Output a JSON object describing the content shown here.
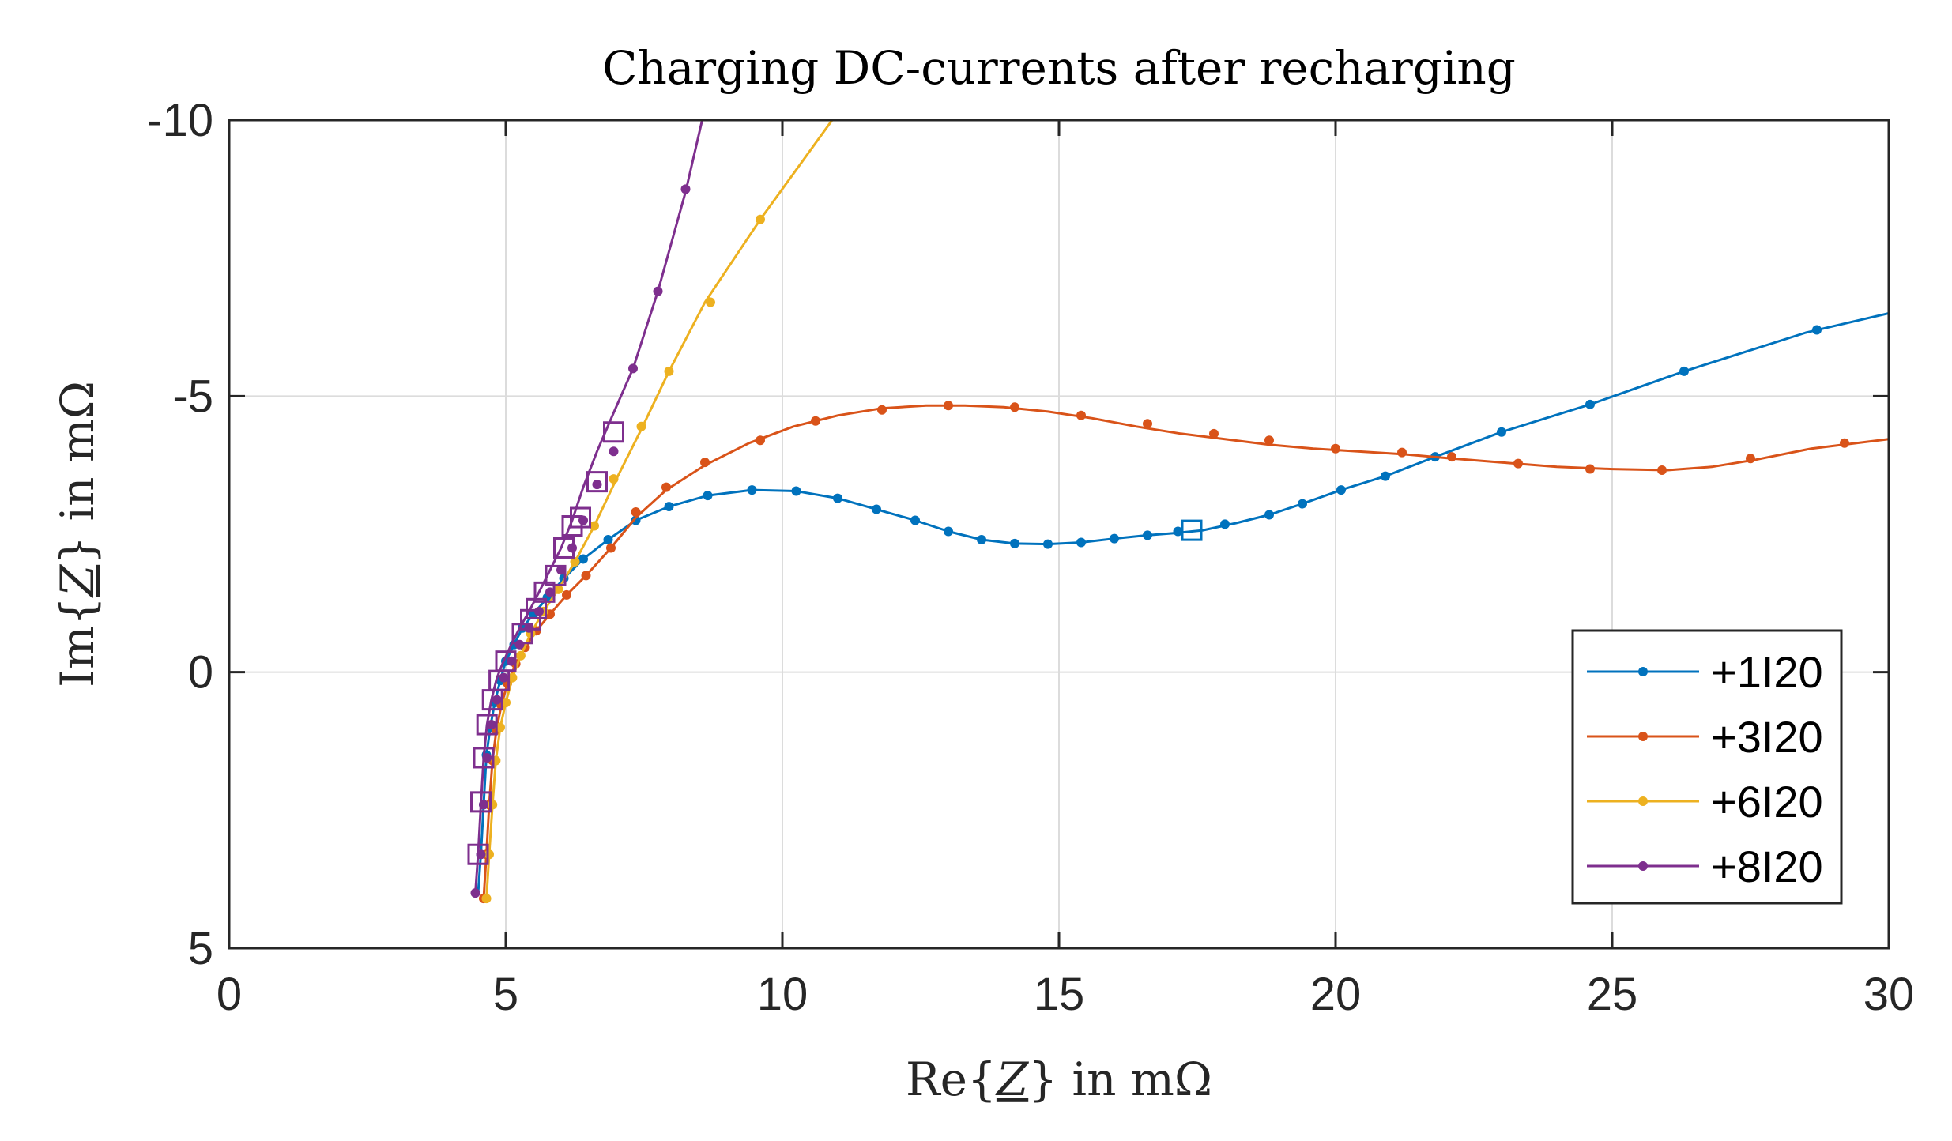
{
  "chart_data": {
    "type": "line",
    "title": "Charging DC-currents after recharging",
    "xlabel": "Re{Z} in mΩ",
    "ylabel": "Im{Z} in mΩ",
    "xlabel_parts": {
      "prefix": "Re{",
      "sym": "Z",
      "suffix": "} in mΩ"
    },
    "ylabel_parts": {
      "prefix": "Im{",
      "sym": "Z",
      "suffix": "} in mΩ"
    },
    "xlim": [
      0,
      30
    ],
    "ylim": [
      -10,
      5
    ],
    "y_reversed": true,
    "xticks": [
      0,
      5,
      10,
      15,
      20,
      25,
      30
    ],
    "yticks": [
      -10,
      -5,
      0,
      5
    ],
    "xtick_labels": [
      "0",
      "5",
      "10",
      "15",
      "20",
      "25",
      "30"
    ],
    "ytick_labels": [
      "-10",
      "-5",
      "0",
      "5"
    ],
    "grid": true,
    "legend_position": "bottom-right",
    "series": [
      {
        "name": "+1I20",
        "color": "#0072BD",
        "x": [
          4.5,
          4.55,
          4.6,
          4.65,
          4.72,
          4.8,
          4.9,
          5.0,
          5.15,
          5.3,
          5.5,
          5.75,
          6.05,
          6.4,
          6.85,
          7.35,
          7.95,
          8.65,
          9.45,
          10.25,
          11.0,
          11.7,
          12.4,
          13.0,
          13.6,
          14.2,
          14.8,
          15.4,
          16.0,
          16.6,
          17.1,
          17.6,
          18.2,
          18.8,
          19.4,
          20.1,
          20.9,
          21.8,
          23.0,
          24.6,
          26.3,
          28.5,
          30.0
        ],
        "y": [
          4.0,
          3.3,
          2.4,
          1.5,
          1.0,
          0.55,
          0.15,
          -0.2,
          -0.5,
          -0.8,
          -1.05,
          -1.35,
          -1.7,
          -2.05,
          -2.4,
          -2.75,
          -3.0,
          -3.2,
          -3.3,
          -3.28,
          -3.15,
          -2.95,
          -2.75,
          -2.55,
          -2.4,
          -2.33,
          -2.32,
          -2.35,
          -2.42,
          -2.48,
          -2.52,
          -2.57,
          -2.7,
          -2.85,
          -3.05,
          -3.3,
          -3.55,
          -3.9,
          -4.35,
          -4.85,
          -5.45,
          -6.15,
          -6.5
        ],
        "markers_x": [
          4.55,
          4.6,
          4.65,
          4.72,
          4.8,
          4.9,
          5.0,
          5.15,
          5.3,
          5.5,
          5.75,
          6.05,
          6.4,
          6.85,
          7.35,
          7.95,
          8.65,
          9.45,
          10.25,
          11.0,
          11.7,
          12.4,
          13.0,
          13.6,
          14.2,
          14.8,
          15.4,
          16.0,
          16.6,
          17.15,
          18.0,
          18.8,
          19.4,
          20.1,
          20.9,
          21.8,
          23.0,
          24.6,
          26.3,
          28.7
        ],
        "markers_y": [
          3.3,
          2.4,
          1.5,
          1.0,
          0.55,
          0.15,
          -0.2,
          -0.5,
          -0.8,
          -1.05,
          -1.35,
          -1.7,
          -2.05,
          -2.4,
          -2.75,
          -3.0,
          -3.2,
          -3.3,
          -3.28,
          -3.15,
          -2.95,
          -2.75,
          -2.55,
          -2.4,
          -2.33,
          -2.32,
          -2.35,
          -2.42,
          -2.48,
          -2.55,
          -2.68,
          -2.85,
          -3.05,
          -3.3,
          -3.55,
          -3.9,
          -4.35,
          -4.85,
          -5.45,
          -6.2
        ],
        "squares_x": [
          17.4
        ],
        "squares_y": [
          -2.57
        ]
      },
      {
        "name": "+3I20",
        "color": "#D95319",
        "x": [
          4.6,
          4.65,
          4.7,
          4.76,
          4.83,
          4.92,
          5.03,
          5.18,
          5.35,
          5.55,
          5.8,
          6.1,
          6.45,
          6.9,
          7.35,
          7.9,
          8.6,
          9.4,
          10.2,
          11.0,
          11.8,
          12.6,
          13.3,
          14.0,
          14.8,
          15.6,
          16.4,
          17.2,
          18.0,
          18.8,
          19.6,
          20.4,
          21.2,
          22.0,
          23.0,
          24.0,
          25.0,
          26.0,
          26.8,
          27.6,
          28.6,
          30.0
        ],
        "y": [
          4.1,
          3.3,
          2.4,
          1.6,
          1.05,
          0.6,
          0.2,
          -0.15,
          -0.45,
          -0.75,
          -1.05,
          -1.4,
          -1.75,
          -2.25,
          -2.8,
          -3.3,
          -3.75,
          -4.15,
          -4.45,
          -4.65,
          -4.78,
          -4.83,
          -4.83,
          -4.8,
          -4.72,
          -4.6,
          -4.45,
          -4.32,
          -4.22,
          -4.12,
          -4.05,
          -4.0,
          -3.95,
          -3.88,
          -3.8,
          -3.72,
          -3.68,
          -3.66,
          -3.72,
          -3.85,
          -4.05,
          -4.22
        ],
        "markers_x": [
          4.6,
          4.65,
          4.7,
          4.76,
          4.83,
          4.92,
          5.03,
          5.18,
          5.35,
          5.55,
          5.8,
          6.1,
          6.45,
          6.9,
          7.35,
          7.9,
          8.6,
          9.6,
          10.6,
          11.8,
          13.0,
          14.2,
          15.4,
          16.6,
          17.8,
          18.8,
          20.0,
          21.2,
          22.1,
          23.3,
          24.6,
          25.9,
          27.5,
          29.2
        ],
        "markers_y": [
          4.1,
          3.3,
          2.4,
          1.6,
          1.05,
          0.6,
          0.2,
          -0.15,
          -0.45,
          -0.75,
          -1.05,
          -1.4,
          -1.75,
          -2.25,
          -2.9,
          -3.35,
          -3.8,
          -4.2,
          -4.55,
          -4.75,
          -4.83,
          -4.8,
          -4.65,
          -4.5,
          -4.32,
          -4.2,
          -4.05,
          -3.98,
          -3.9,
          -3.78,
          -3.68,
          -3.66,
          -3.87,
          -4.15
        ],
        "squares_x": [],
        "squares_y": []
      },
      {
        "name": "+6I20",
        "color": "#EDB120",
        "x": [
          4.65,
          4.7,
          4.76,
          4.82,
          4.9,
          5.0,
          5.12,
          5.27,
          5.45,
          5.68,
          5.95,
          6.25,
          6.6,
          7.0,
          7.45,
          7.95,
          8.6,
          9.6,
          10.9
        ],
        "y": [
          4.1,
          3.3,
          2.4,
          1.6,
          1.0,
          0.55,
          0.1,
          -0.3,
          -0.7,
          -1.1,
          -1.5,
          -2.0,
          -2.65,
          -3.5,
          -4.4,
          -5.45,
          -6.7,
          -8.2,
          -10.0
        ],
        "markers_x": [
          4.65,
          4.7,
          4.76,
          4.82,
          4.9,
          5.0,
          5.12,
          5.27,
          5.45,
          5.68,
          5.95,
          6.25,
          6.6,
          6.95,
          7.45,
          7.95,
          8.7,
          9.6
        ],
        "markers_y": [
          4.1,
          3.3,
          2.4,
          1.6,
          1.0,
          0.55,
          0.1,
          -0.3,
          -0.7,
          -1.1,
          -1.5,
          -2.0,
          -2.65,
          -3.5,
          -4.45,
          -5.45,
          -6.7,
          -8.2
        ],
        "squares_x": [],
        "squares_y": []
      },
      {
        "name": "+8I20",
        "color": "#7E2F8E",
        "x": [
          4.45,
          4.5,
          4.55,
          4.6,
          4.66,
          4.74,
          4.84,
          4.96,
          5.1,
          5.25,
          5.42,
          5.6,
          5.8,
          6.0,
          6.2,
          6.4,
          6.65,
          6.95,
          7.3,
          7.75,
          8.25,
          8.55
        ],
        "y": [
          4.0,
          3.3,
          2.4,
          1.55,
          0.95,
          0.5,
          0.1,
          -0.2,
          -0.5,
          -0.8,
          -1.1,
          -1.45,
          -1.85,
          -2.25,
          -2.75,
          -3.35,
          -4.0,
          -4.7,
          -5.5,
          -6.9,
          -8.7,
          -10.0
        ],
        "markers_x": [
          4.45,
          4.55,
          4.6,
          4.66,
          4.74,
          4.84,
          4.96,
          5.1,
          5.25,
          5.42,
          5.6,
          5.8,
          6.0,
          6.2,
          6.4,
          6.65,
          6.95,
          7.3,
          7.75,
          8.25
        ],
        "markers_y": [
          4.0,
          3.3,
          2.4,
          1.55,
          0.95,
          0.5,
          0.1,
          -0.2,
          -0.5,
          -0.8,
          -1.1,
          -1.45,
          -1.85,
          -2.25,
          -2.75,
          -3.4,
          -4.0,
          -5.5,
          -6.9,
          -8.75
        ],
        "squares_x": [
          4.5,
          4.55,
          4.6,
          4.66,
          4.76,
          4.88,
          5.0,
          5.3,
          5.45,
          5.55,
          5.7,
          5.9,
          6.05,
          6.2,
          6.35,
          6.65,
          6.95
        ],
        "squares_y": [
          3.3,
          2.35,
          1.55,
          0.95,
          0.5,
          0.15,
          -0.2,
          -0.7,
          -0.95,
          -1.15,
          -1.45,
          -1.75,
          -2.25,
          -2.65,
          -2.8,
          -3.45,
          -4.35
        ]
      }
    ]
  }
}
